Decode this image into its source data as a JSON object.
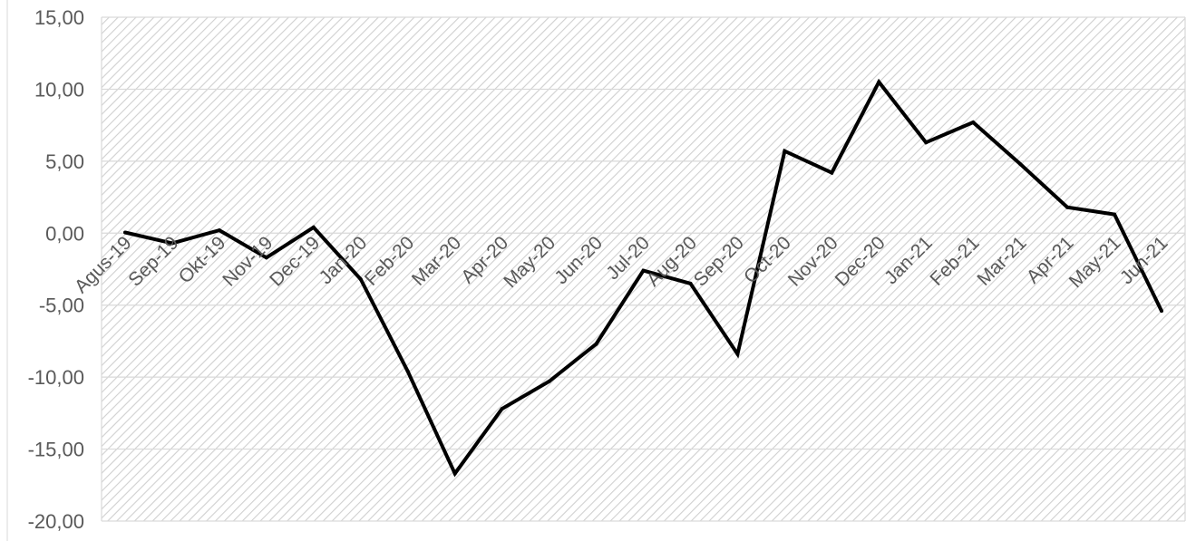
{
  "chart_data": {
    "type": "line",
    "title": "",
    "xlabel": "",
    "ylabel": "",
    "categories": [
      "Agus-19",
      "Sep-19",
      "Okt-19",
      "Nov-19",
      "Dec-19",
      "Jan-20",
      "Feb-20",
      "Mar-20",
      "Apr-20",
      "May-20",
      "Jun-20",
      "Jul-20",
      "Aug-20",
      "Sep-20",
      "Oct-20",
      "Nov-20",
      "Dec-20",
      "Jan-21",
      "Feb-21",
      "Mar-21",
      "Apr-21",
      "May-21",
      "Jun-21"
    ],
    "series": [
      {
        "values": [
          0.05,
          -0.7,
          0.2,
          -1.7,
          0.4,
          -3.2,
          -9.6,
          -16.7,
          -12.2,
          -10.3,
          -7.7,
          -2.6,
          -3.5,
          -8.4,
          5.7,
          4.2,
          10.5,
          6.3,
          7.7,
          4.8,
          1.8,
          1.3,
          -5.4
        ],
        "color": "#000000"
      }
    ],
    "ylim": [
      -20,
      15
    ],
    "yticks": [
      15,
      10,
      5,
      0,
      -5,
      -10,
      -15,
      -20
    ],
    "ytick_labels": [
      "15,00",
      "10,00",
      "5,00",
      "0,00",
      "-5,00",
      "-10,00",
      "-15,00",
      "-20,00"
    ],
    "grid": true,
    "legend": "none",
    "colors": {
      "line": "#000000",
      "gridline": "#d9d9d9",
      "hatch": "#d0d0d0",
      "axis_text": "#595959",
      "zero_line": "#d9d9d9"
    }
  }
}
